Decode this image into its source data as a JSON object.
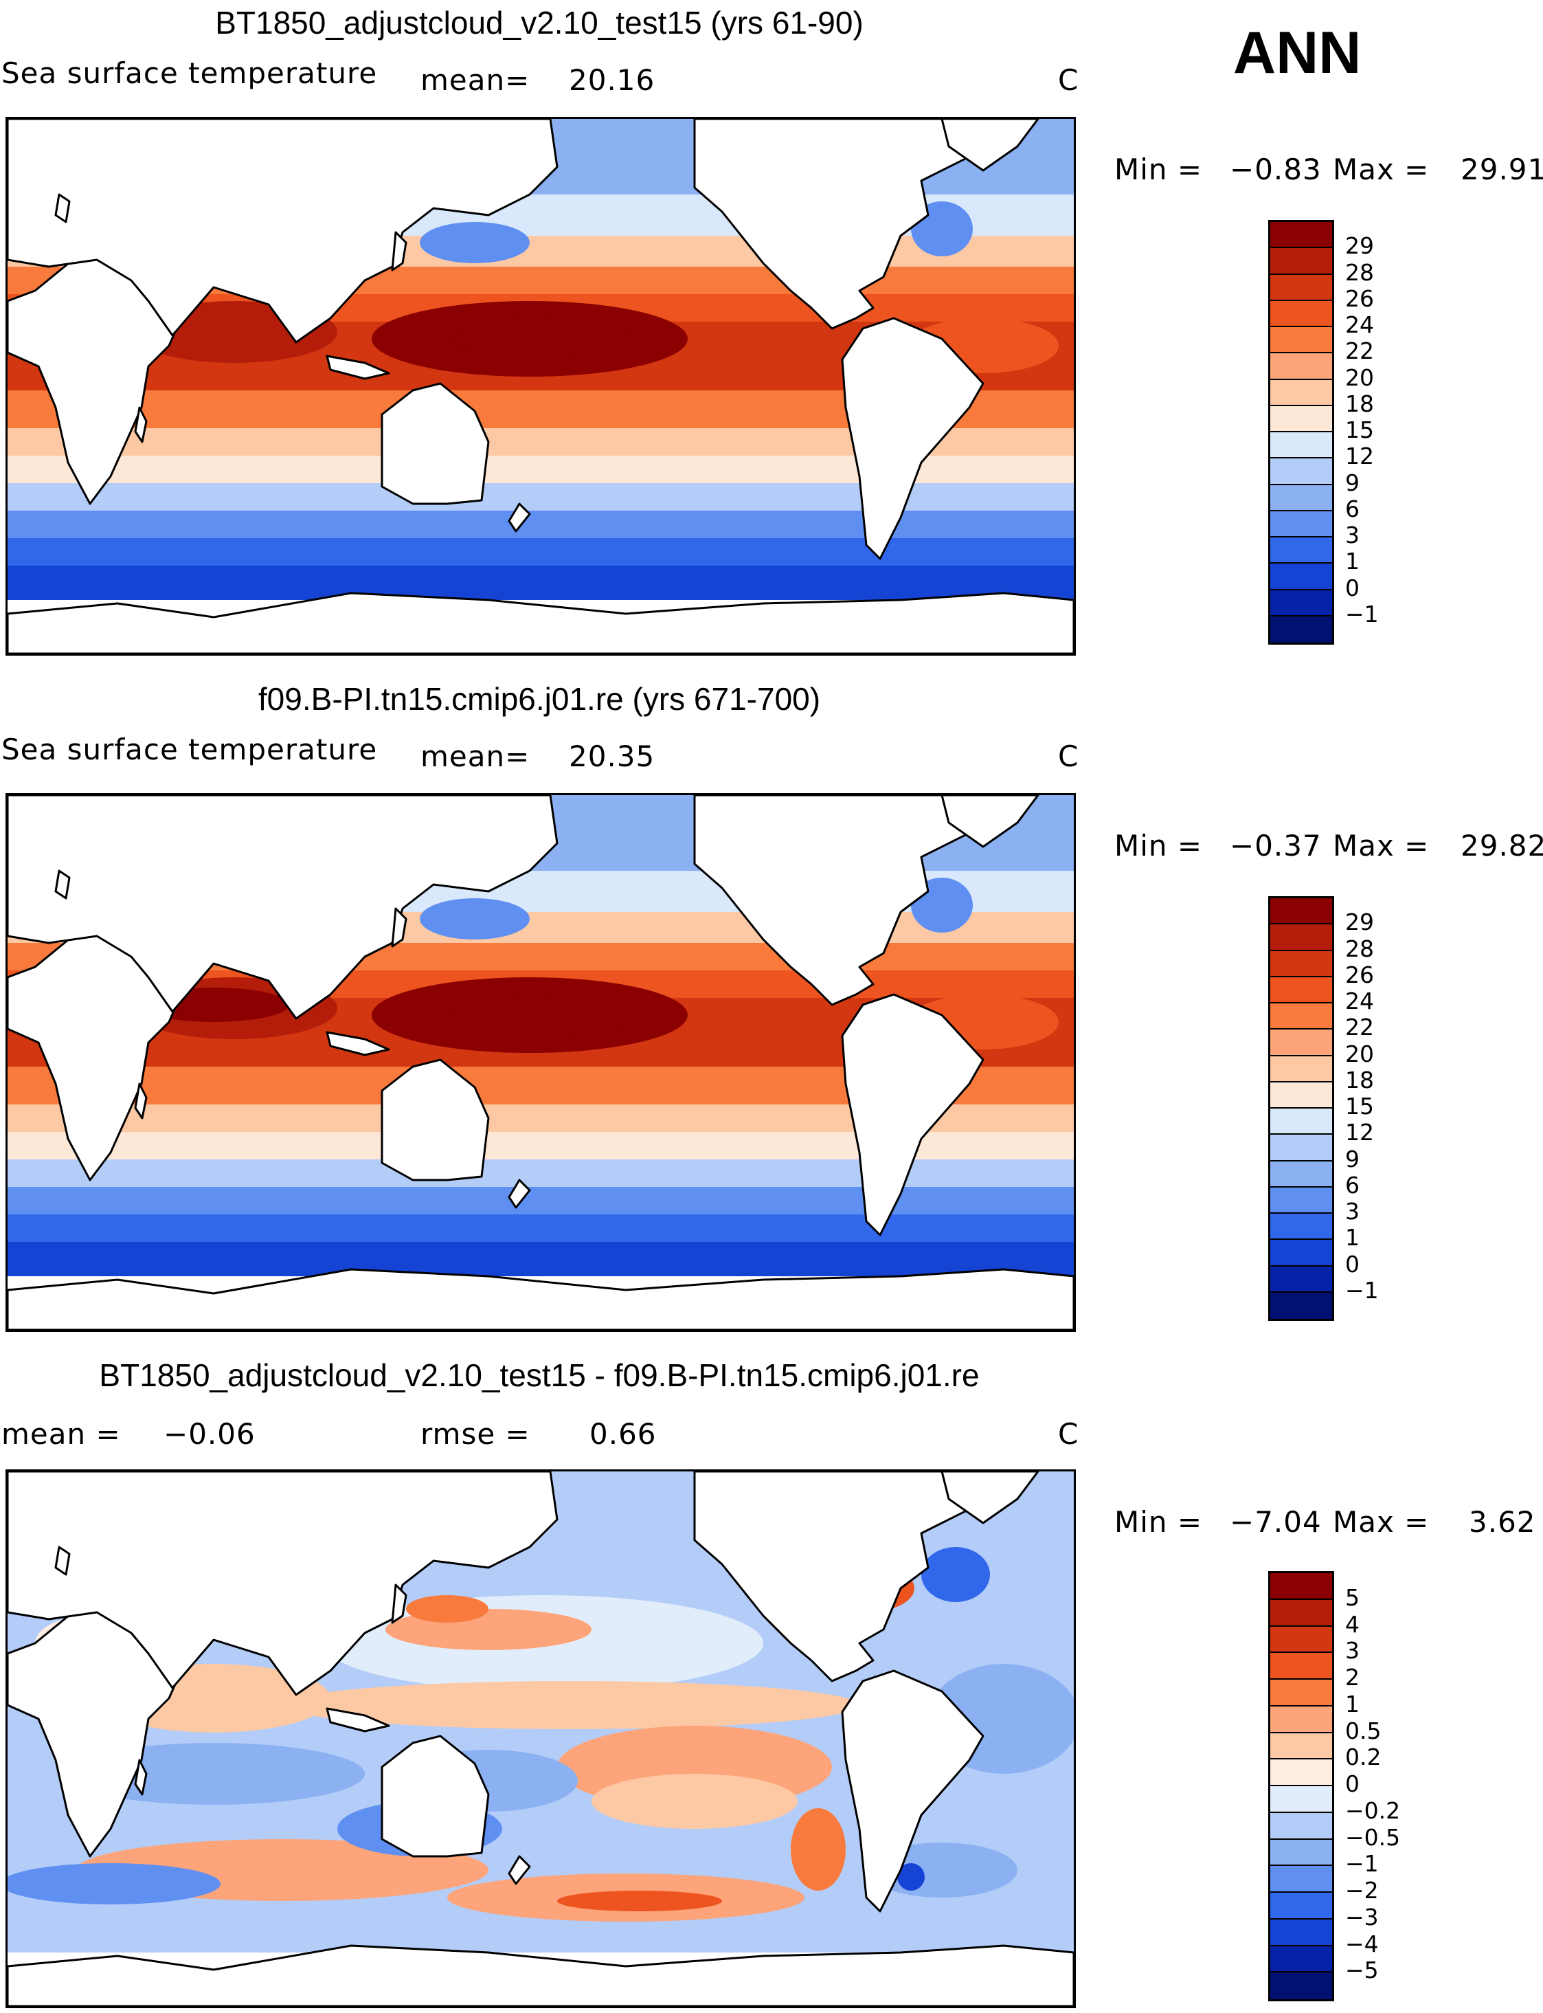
{
  "season": "ANN",
  "units_label": "C",
  "panels": [
    {
      "title": "BT1850_adjustcloud_v2.10_test15 (yrs 61-90)",
      "variable": "Sea surface temperature",
      "mean_label": "mean=",
      "mean_value": "20.16",
      "units": "C",
      "min_label": "Min =",
      "min_value": "−0.83",
      "max_label": "Max =",
      "max_value": "29.91",
      "map_kind": "abs"
    },
    {
      "title": "f09.B-PI.tn15.cmip6.j01.re (yrs 671-700)",
      "variable": "Sea surface temperature",
      "mean_label": "mean=",
      "mean_value": "20.35",
      "units": "C",
      "min_label": "Min =",
      "min_value": "−0.37",
      "max_label": "Max =",
      "max_value": "29.82",
      "map_kind": "abs"
    },
    {
      "title": "BT1850_adjustcloud_v2.10_test15 - f09.B-PI.tn15.cmip6.j01.re",
      "mean_label": "mean =",
      "mean_value": "−0.06",
      "rmse_label": "rmse =",
      "rmse_value": "0.66",
      "units": "C",
      "min_label": "Min =",
      "min_value": "−7.04",
      "max_label": "Max =",
      "max_value": "3.62",
      "map_kind": "diff"
    }
  ],
  "colorbars": {
    "abs": {
      "labels": [
        "29",
        "28",
        "26",
        "24",
        "22",
        "20",
        "18",
        "15",
        "12",
        "9",
        "6",
        "3",
        "1",
        "0",
        "−1"
      ],
      "colors": [
        "#8b0000",
        "#b41d0a",
        "#d23711",
        "#ed5420",
        "#f87a3c",
        "#fda47a",
        "#fdc9a5",
        "#fde8d8",
        "#d9e8fb",
        "#b3cdf8",
        "#8bb1f3",
        "#5f8ff0",
        "#3167ea",
        "#1544d4",
        "#0622a8",
        "#001172"
      ]
    },
    "diff": {
      "labels": [
        "5",
        "4",
        "3",
        "2",
        "1",
        "0.5",
        "0.2",
        "0",
        "−0.2",
        "−0.5",
        "−1",
        "−2",
        "−3",
        "−4",
        "−5"
      ],
      "colors": [
        "#8b0000",
        "#b41d0a",
        "#d23711",
        "#ed5420",
        "#f87a3c",
        "#fda47a",
        "#fdc9a5",
        "#fdece2",
        "#e2edfb",
        "#b3cdf8",
        "#8bb1f3",
        "#5f8ff0",
        "#3167ea",
        "#1544d4",
        "#0622a8",
        "#001172"
      ]
    }
  }
}
